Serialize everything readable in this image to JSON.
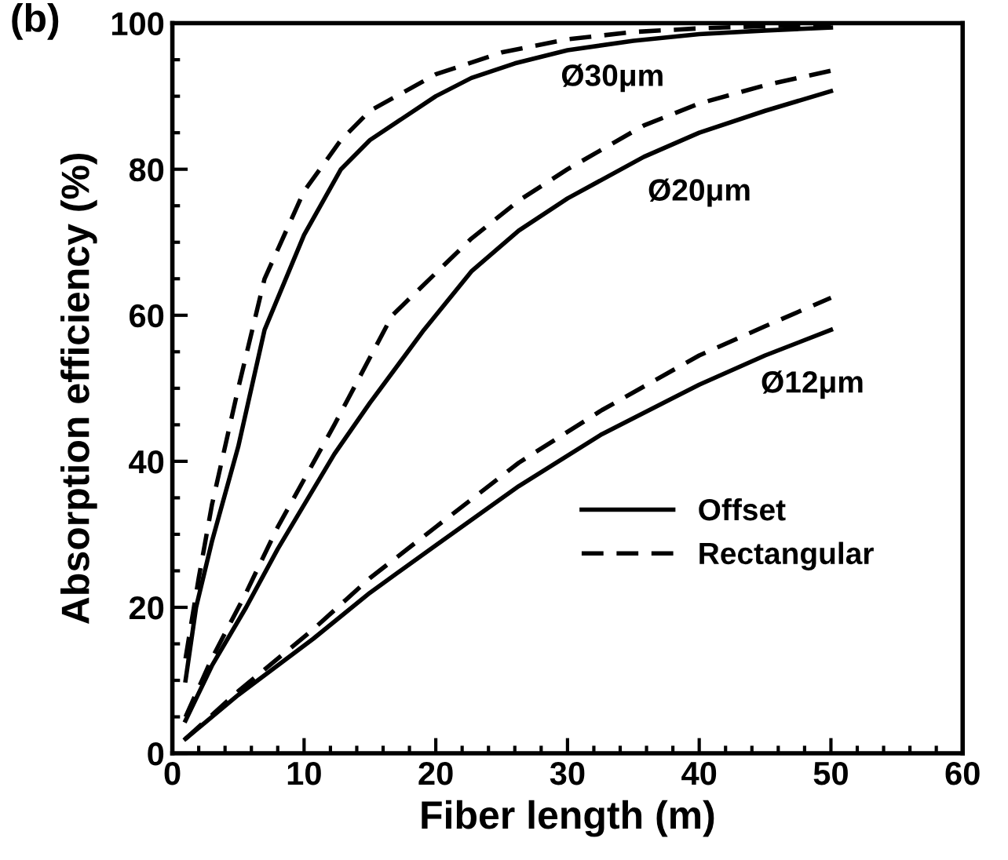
{
  "chart_data": {
    "type": "line",
    "title": "(b)",
    "xlabel": "Fiber length (m)",
    "ylabel": "Absorption efficiency (%)",
    "xlim": [
      0,
      60
    ],
    "xticks": [
      0,
      10,
      20,
      30,
      40,
      50,
      60
    ],
    "ylim": [
      0,
      100
    ],
    "yticks": [
      0,
      20,
      40,
      60,
      80,
      100
    ],
    "grid": false,
    "legend": "right",
    "marker": "none",
    "series": [
      {
        "name": "Offset",
        "color": "#000000",
        "line_style": "solid",
        "x": [
          1,
          1.8,
          3,
          5,
          7,
          10,
          12.8,
          15,
          20,
          22.7,
          26,
          30,
          35,
          40,
          45,
          50
        ],
        "values": [
          10,
          20,
          29,
          42,
          58,
          71,
          80,
          84,
          90,
          92.5,
          94.5,
          96.3,
          97.6,
          98.5,
          99,
          99.4
        ]
      },
      {
        "name": "Rectangular",
        "color": "#000000",
        "line_style": "dashed",
        "x": [
          1,
          2,
          3,
          5,
          7,
          10,
          12.8,
          15,
          20,
          25,
          30,
          35,
          40,
          45,
          50
        ],
        "values": [
          13,
          24,
          34,
          50,
          65,
          77,
          84,
          88,
          93,
          96,
          97.8,
          98.8,
          99.3,
          99.6,
          99.8
        ]
      },
      {
        "color": "#000000",
        "line_style": "solid",
        "x": [
          1,
          3,
          5.6,
          8,
          12.3,
          15,
          19.1,
          22.7,
          26.3,
          30,
          35.8,
          40,
          45,
          50
        ],
        "values": [
          4.5,
          12,
          20,
          28,
          41,
          48,
          58,
          66,
          71.6,
          76,
          81.7,
          85,
          88,
          90.7
        ]
      },
      {
        "color": "#000000",
        "line_style": "dashed",
        "x": [
          1,
          3,
          5.6,
          8,
          12.3,
          16.7,
          22.7,
          26.3,
          30,
          35.8,
          40,
          45,
          50
        ],
        "values": [
          5,
          13,
          22,
          31,
          45,
          60,
          70.5,
          75.7,
          80,
          86,
          89,
          91.5,
          93.5
        ]
      },
      {
        "color": "#000000",
        "line_style": "solid",
        "x": [
          1,
          5,
          10.7,
          15,
          20,
          26.3,
          32.6,
          40,
          45,
          50
        ],
        "values": [
          2,
          8,
          15.7,
          22,
          28.5,
          36.6,
          43.7,
          50.5,
          54.5,
          58
        ]
      },
      {
        "color": "#000000",
        "line_style": "dashed",
        "x": [
          1,
          5,
          10.7,
          15,
          20,
          26.3,
          32.6,
          40,
          45,
          50
        ],
        "values": [
          2,
          8.5,
          17,
          24,
          31,
          39.8,
          47,
          54.5,
          58.5,
          62.4
        ]
      }
    ],
    "annotations": [
      "Ø30μm",
      "Ø20μm",
      "Ø12μm"
    ]
  }
}
